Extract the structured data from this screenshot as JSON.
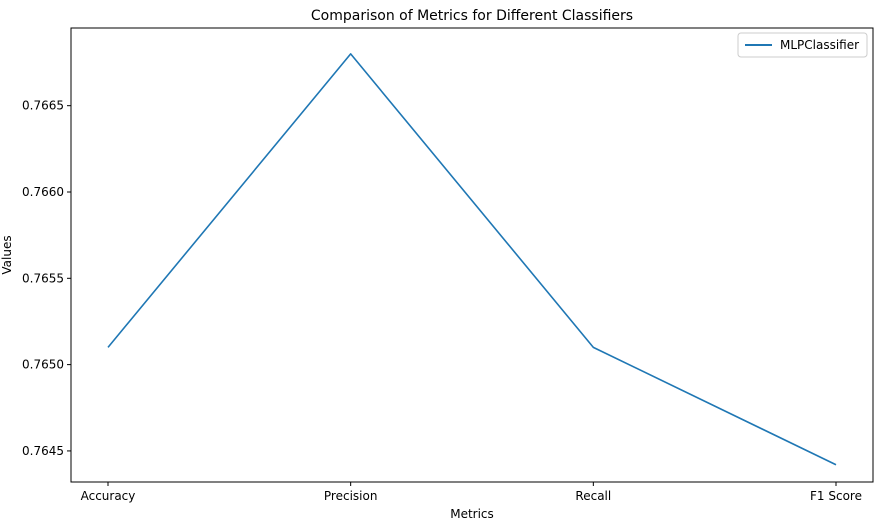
{
  "chart_data": {
    "type": "line",
    "title": "Comparison of Metrics for Different Classifiers",
    "xlabel": "Metrics",
    "ylabel": "Values",
    "categories": [
      "Accuracy",
      "Precision",
      "Recall",
      "F1 Score"
    ],
    "series": [
      {
        "name": "MLPClassifier",
        "values": [
          0.7651,
          0.7668,
          0.7651,
          0.76442
        ],
        "color": "#1f77b4"
      }
    ],
    "ylim": [
      0.76432,
      0.76695
    ],
    "yticks": [
      0.7645,
      0.765,
      0.7655,
      0.766,
      0.7665
    ],
    "ytick_labels": [
      "0.7645",
      "0.7650",
      "0.7655",
      "0.7660",
      "0.7665"
    ],
    "grid": false,
    "legend_position": "top-right"
  }
}
